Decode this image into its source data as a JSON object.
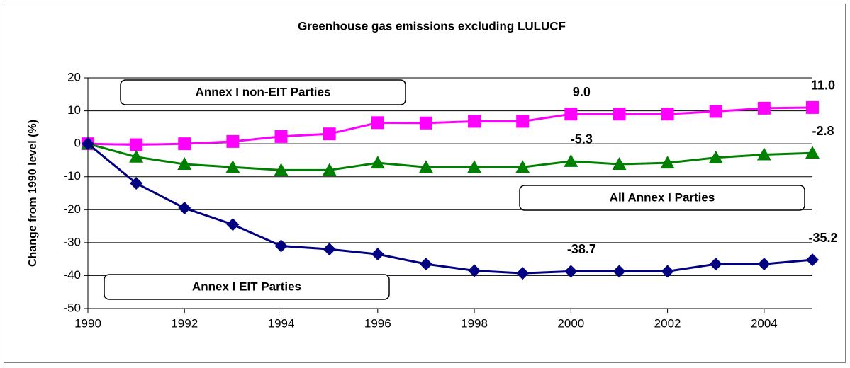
{
  "chart_data": {
    "type": "line",
    "title": "Greenhouse gas emissions excluding LULUCF",
    "y_label": "Change from 1990 level (%)",
    "x": [
      1990,
      1991,
      1992,
      1993,
      1994,
      1995,
      1996,
      1997,
      1998,
      1999,
      2000,
      2001,
      2002,
      2003,
      2004,
      2005
    ],
    "xlim": [
      1990,
      2005
    ],
    "xticks": [
      1990,
      1992,
      1994,
      1996,
      1998,
      2000,
      2002,
      2004
    ],
    "ylim": [
      -50,
      20
    ],
    "yticks": [
      -50,
      -40,
      -30,
      -20,
      -10,
      0,
      10,
      20
    ],
    "grid": true,
    "series": [
      {
        "name": "Annex I non-EIT Parties",
        "color": "#ff00ff",
        "marker": "square",
        "values": [
          0,
          -0.3,
          0,
          0.7,
          2.2,
          3,
          6.4,
          6.3,
          6.8,
          6.8,
          9.0,
          9.0,
          9.0,
          9.8,
          10.8,
          11.0
        ],
        "value_labels": [
          null,
          null,
          null,
          null,
          null,
          null,
          null,
          null,
          null,
          null,
          "9.0",
          null,
          null,
          null,
          null,
          "11.0"
        ]
      },
      {
        "name": "All Annex I Parties",
        "color": "#008000",
        "marker": "triangle",
        "values": [
          0,
          -4.0,
          -6.2,
          -7.1,
          -8.0,
          -8.0,
          -5.8,
          -7.1,
          -7.1,
          -7.1,
          -5.3,
          -6.2,
          -5.8,
          -4.2,
          -3.3,
          -2.8
        ],
        "value_labels": [
          null,
          null,
          null,
          null,
          null,
          null,
          null,
          null,
          null,
          null,
          "-5.3",
          null,
          null,
          null,
          null,
          "-2.8"
        ]
      },
      {
        "name": "Annex I EIT Parties",
        "color": "#000080",
        "marker": "diamond",
        "values": [
          0,
          -12,
          -19.5,
          -24.5,
          -31,
          -32,
          -33.5,
          -36.5,
          -38.5,
          -39.3,
          -38.7,
          -38.7,
          -38.7,
          -36.5,
          -36.5,
          -35.2
        ],
        "value_labels": [
          null,
          null,
          null,
          null,
          null,
          null,
          null,
          null,
          null,
          null,
          "-38.7",
          null,
          null,
          null,
          null,
          "-35.2"
        ]
      }
    ]
  }
}
